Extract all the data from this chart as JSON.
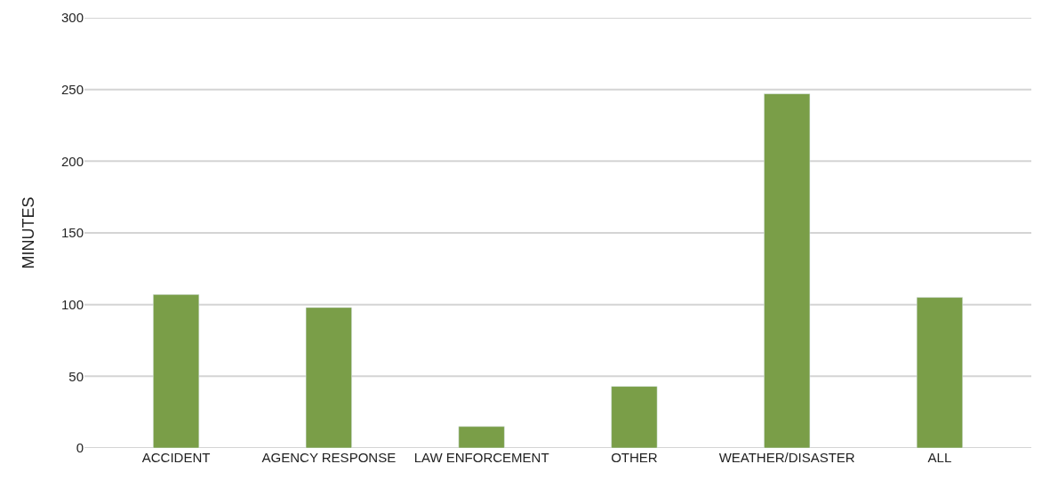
{
  "chart_data": {
    "type": "bar",
    "ylabel": "MINUTES",
    "categories": [
      "ACCIDENT",
      "AGENCY RESPONSE",
      "LAW ENFORCEMENT",
      "OTHER",
      "WEATHER/DISASTER",
      "ALL"
    ],
    "values": [
      107,
      98,
      15,
      43,
      247,
      105
    ],
    "color": "#7a9e48",
    "ylim": [
      0,
      300
    ],
    "yticks": [
      0,
      50,
      100,
      150,
      200,
      250,
      300
    ],
    "grid": "y"
  }
}
